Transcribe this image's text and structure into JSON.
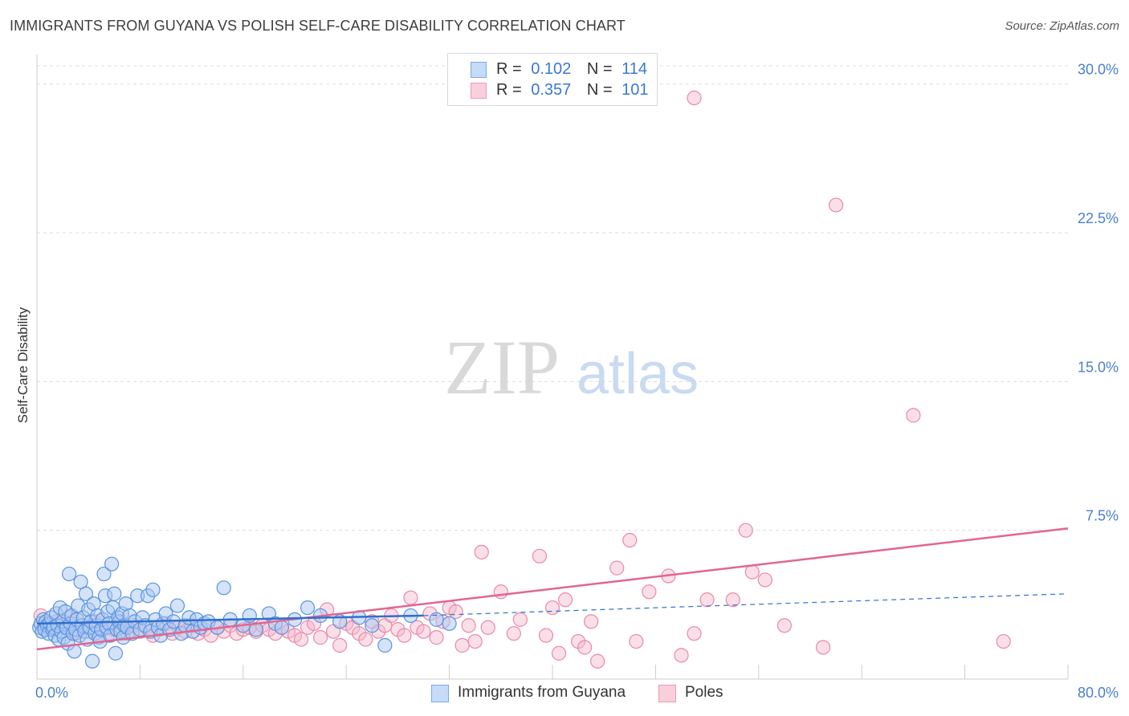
{
  "header": {
    "title": "IMMIGRANTS FROM GUYANA VS POLISH SELF-CARE DISABILITY CORRELATION CHART",
    "source": "Source: ZipAtlas.com"
  },
  "watermark": {
    "zip": "ZIP",
    "atlas": "atlas"
  },
  "legend": {
    "rows": [
      {
        "r_label": "R =",
        "r_value": "0.102",
        "n_label": "N =",
        "n_value": "114"
      },
      {
        "r_label": "R =",
        "r_value": "0.357",
        "n_label": "N =",
        "n_value": "101"
      }
    ]
  },
  "bottom_legend": [
    {
      "label": "Immigrants from Guyana"
    },
    {
      "label": "Poles"
    }
  ],
  "colors": {
    "blue_fill": "#a9c8f2",
    "blue_stroke": "#5b93e0",
    "blue_line": "#2f6fce",
    "pink_fill": "#f5b8cb",
    "pink_stroke": "#e88aa8",
    "pink_line": "#e2668f",
    "grid": "#dcdcdc",
    "tick_text": "#4a7fcf"
  },
  "chart_data": {
    "type": "scatter",
    "title": "IMMIGRANTS FROM GUYANA VS POLISH SELF-CARE DISABILITY CORRELATION CHART",
    "xlabel": "",
    "ylabel": "Self-Care Disability",
    "xlim": [
      0,
      80
    ],
    "ylim": [
      0,
      31
    ],
    "x_tick_labels": [
      "0.0%",
      "80.0%"
    ],
    "y_ticks": [
      7.5,
      15.0,
      22.5,
      30.0
    ],
    "y_tick_labels": [
      "7.5%",
      "15.0%",
      "22.5%",
      "30.0%"
    ],
    "grid": true,
    "legend_position": "top-center",
    "series": [
      {
        "name": "Immigrants from Guyana",
        "R": 0.102,
        "N": 114,
        "trend_solid": [
          [
            0,
            2.8
          ],
          [
            30,
            3.2
          ]
        ],
        "trend_dashed": [
          [
            30,
            3.2
          ],
          [
            80,
            4.3
          ]
        ],
        "points": [
          [
            0.2,
            2.6
          ],
          [
            0.3,
            2.8
          ],
          [
            0.4,
            2.4
          ],
          [
            0.5,
            3.0
          ],
          [
            0.6,
            2.5
          ],
          [
            0.7,
            2.9
          ],
          [
            0.8,
            2.7
          ],
          [
            0.9,
            2.3
          ],
          [
            1.0,
            2.8
          ],
          [
            1.1,
            3.1
          ],
          [
            1.2,
            2.5
          ],
          [
            1.3,
            2.6
          ],
          [
            1.4,
            2.2
          ],
          [
            1.5,
            3.3
          ],
          [
            1.6,
            2.7
          ],
          [
            1.7,
            2.0
          ],
          [
            1.8,
            3.6
          ],
          [
            1.9,
            2.4
          ],
          [
            2.0,
            2.9
          ],
          [
            2.1,
            2.1
          ],
          [
            2.2,
            3.4
          ],
          [
            2.3,
            2.6
          ],
          [
            2.4,
            1.8
          ],
          [
            2.5,
            5.3
          ],
          [
            2.6,
            2.8
          ],
          [
            2.7,
            3.2
          ],
          [
            2.8,
            2.3
          ],
          [
            2.9,
            1.4
          ],
          [
            3.0,
            2.5
          ],
          [
            3.1,
            3.0
          ],
          [
            3.2,
            3.7
          ],
          [
            3.3,
            2.2
          ],
          [
            3.4,
            4.9
          ],
          [
            3.5,
            2.7
          ],
          [
            3.6,
            3.1
          ],
          [
            3.7,
            2.4
          ],
          [
            3.8,
            4.3
          ],
          [
            3.9,
            2.0
          ],
          [
            4.0,
            3.5
          ],
          [
            4.1,
            2.6
          ],
          [
            4.2,
            2.9
          ],
          [
            4.3,
            0.9
          ],
          [
            4.4,
            3.8
          ],
          [
            4.5,
            2.3
          ],
          [
            4.6,
            2.7
          ],
          [
            4.7,
            3.2
          ],
          [
            4.8,
            2.1
          ],
          [
            4.9,
            1.9
          ],
          [
            5.0,
            2.5
          ],
          [
            5.1,
            3.0
          ],
          [
            5.2,
            5.3
          ],
          [
            5.3,
            4.2
          ],
          [
            5.4,
            2.6
          ],
          [
            5.5,
            3.4
          ],
          [
            5.6,
            2.8
          ],
          [
            5.7,
            2.2
          ],
          [
            5.8,
            5.8
          ],
          [
            5.9,
            3.6
          ],
          [
            6.0,
            4.3
          ],
          [
            6.1,
            1.3
          ],
          [
            6.2,
            2.5
          ],
          [
            6.3,
            3.1
          ],
          [
            6.4,
            2.9
          ],
          [
            6.5,
            2.4
          ],
          [
            6.6,
            3.3
          ],
          [
            6.7,
            2.1
          ],
          [
            6.8,
            2.7
          ],
          [
            6.9,
            3.8
          ],
          [
            7.0,
            2.6
          ],
          [
            7.2,
            3.2
          ],
          [
            7.4,
            2.3
          ],
          [
            7.6,
            2.9
          ],
          [
            7.8,
            4.2
          ],
          [
            8.0,
            2.5
          ],
          [
            8.2,
            3.1
          ],
          [
            8.4,
            2.7
          ],
          [
            8.6,
            4.2
          ],
          [
            8.8,
            2.4
          ],
          [
            9.0,
            4.5
          ],
          [
            9.2,
            3.0
          ],
          [
            9.4,
            2.6
          ],
          [
            9.6,
            2.2
          ],
          [
            9.8,
            2.8
          ],
          [
            10.0,
            3.3
          ],
          [
            10.3,
            2.5
          ],
          [
            10.6,
            2.9
          ],
          [
            10.9,
            3.7
          ],
          [
            11.2,
            2.3
          ],
          [
            11.5,
            2.7
          ],
          [
            11.8,
            3.1
          ],
          [
            12.1,
            2.4
          ],
          [
            12.4,
            3.0
          ],
          [
            12.7,
            2.6
          ],
          [
            13.0,
            2.8
          ],
          [
            13.3,
            2.9
          ],
          [
            14.0,
            2.6
          ],
          [
            15.0,
            3.0
          ],
          [
            14.5,
            4.6
          ],
          [
            16.0,
            2.7
          ],
          [
            16.5,
            3.2
          ],
          [
            17.0,
            2.5
          ],
          [
            18.0,
            3.3
          ],
          [
            18.5,
            2.8
          ],
          [
            19.0,
            2.6
          ],
          [
            20.0,
            3.0
          ],
          [
            21.0,
            3.6
          ],
          [
            22.0,
            3.2
          ],
          [
            23.5,
            2.9
          ],
          [
            25.0,
            3.1
          ],
          [
            26.0,
            2.7
          ],
          [
            27.0,
            1.7
          ],
          [
            29.0,
            3.2
          ],
          [
            31.0,
            3.0
          ],
          [
            32.0,
            2.8
          ]
        ]
      },
      {
        "name": "Poles",
        "R": 0.357,
        "N": 101,
        "trend_solid": [
          [
            0,
            1.5
          ],
          [
            80,
            7.6
          ]
        ],
        "points": [
          [
            0.3,
            3.2
          ],
          [
            0.6,
            2.8
          ],
          [
            1.0,
            2.5
          ],
          [
            1.5,
            2.9
          ],
          [
            2.0,
            2.6
          ],
          [
            2.5,
            3.1
          ],
          [
            3.0,
            2.3
          ],
          [
            3.5,
            2.7
          ],
          [
            4.0,
            2.4
          ],
          [
            4.5,
            2.9
          ],
          [
            5.0,
            2.6
          ],
          [
            5.5,
            2.2
          ],
          [
            6.0,
            2.5
          ],
          [
            6.5,
            2.8
          ],
          [
            7.0,
            2.3
          ],
          [
            7.5,
            2.7
          ],
          [
            8.0,
            2.4
          ],
          [
            8.5,
            2.6
          ],
          [
            9.0,
            2.2
          ],
          [
            9.5,
            2.5
          ],
          [
            10.0,
            2.8
          ],
          [
            10.5,
            2.3
          ],
          [
            11.0,
            2.6
          ],
          [
            11.5,
            2.4
          ],
          [
            12.0,
            2.7
          ],
          [
            12.5,
            2.3
          ],
          [
            13.0,
            2.5
          ],
          [
            13.5,
            2.2
          ],
          [
            14.0,
            2.6
          ],
          [
            14.5,
            2.4
          ],
          [
            15.0,
            2.7
          ],
          [
            15.5,
            2.3
          ],
          [
            16.0,
            2.5
          ],
          [
            16.5,
            2.6
          ],
          [
            17.0,
            2.4
          ],
          [
            17.5,
            2.7
          ],
          [
            18.0,
            2.5
          ],
          [
            18.5,
            2.3
          ],
          [
            19.0,
            2.6
          ],
          [
            19.5,
            2.4
          ],
          [
            20.0,
            2.2
          ],
          [
            20.5,
            2.0
          ],
          [
            21.0,
            2.6
          ],
          [
            21.5,
            2.8
          ],
          [
            22.0,
            2.1
          ],
          [
            22.5,
            3.5
          ],
          [
            23.0,
            2.4
          ],
          [
            23.5,
            1.7
          ],
          [
            24.0,
            2.8
          ],
          [
            24.5,
            2.6
          ],
          [
            25.0,
            2.3
          ],
          [
            25.5,
            2.0
          ],
          [
            26.0,
            2.9
          ],
          [
            26.5,
            2.4
          ],
          [
            27.0,
            2.7
          ],
          [
            27.5,
            3.2
          ],
          [
            28.0,
            2.5
          ],
          [
            28.5,
            2.2
          ],
          [
            29.0,
            4.1
          ],
          [
            29.5,
            2.6
          ],
          [
            30.0,
            2.4
          ],
          [
            30.5,
            3.3
          ],
          [
            31.0,
            2.1
          ],
          [
            31.5,
            2.9
          ],
          [
            32.0,
            3.6
          ],
          [
            32.5,
            3.4
          ],
          [
            33.0,
            1.7
          ],
          [
            33.5,
            2.7
          ],
          [
            34.0,
            1.9
          ],
          [
            34.5,
            6.4
          ],
          [
            35.0,
            2.6
          ],
          [
            36.0,
            4.4
          ],
          [
            37.0,
            2.3
          ],
          [
            37.5,
            3.0
          ],
          [
            39.0,
            6.2
          ],
          [
            39.5,
            2.2
          ],
          [
            40.0,
            3.6
          ],
          [
            40.5,
            1.3
          ],
          [
            41.0,
            4.0
          ],
          [
            42.0,
            1.9
          ],
          [
            42.5,
            1.6
          ],
          [
            43.0,
            2.9
          ],
          [
            43.5,
            0.9
          ],
          [
            45.0,
            5.6
          ],
          [
            46.0,
            7.0
          ],
          [
            46.5,
            1.9
          ],
          [
            47.5,
            4.4
          ],
          [
            49.0,
            5.2
          ],
          [
            50.0,
            1.2
          ],
          [
            51.0,
            2.3
          ],
          [
            52.0,
            4.0
          ],
          [
            54.0,
            4.0
          ],
          [
            55.0,
            7.5
          ],
          [
            55.5,
            5.4
          ],
          [
            56.5,
            5.0
          ],
          [
            58.0,
            2.7
          ],
          [
            61.0,
            1.6
          ],
          [
            62.0,
            23.9
          ],
          [
            75.0,
            1.9
          ],
          [
            68.0,
            13.3
          ],
          [
            51.0,
            29.3
          ]
        ]
      }
    ]
  }
}
